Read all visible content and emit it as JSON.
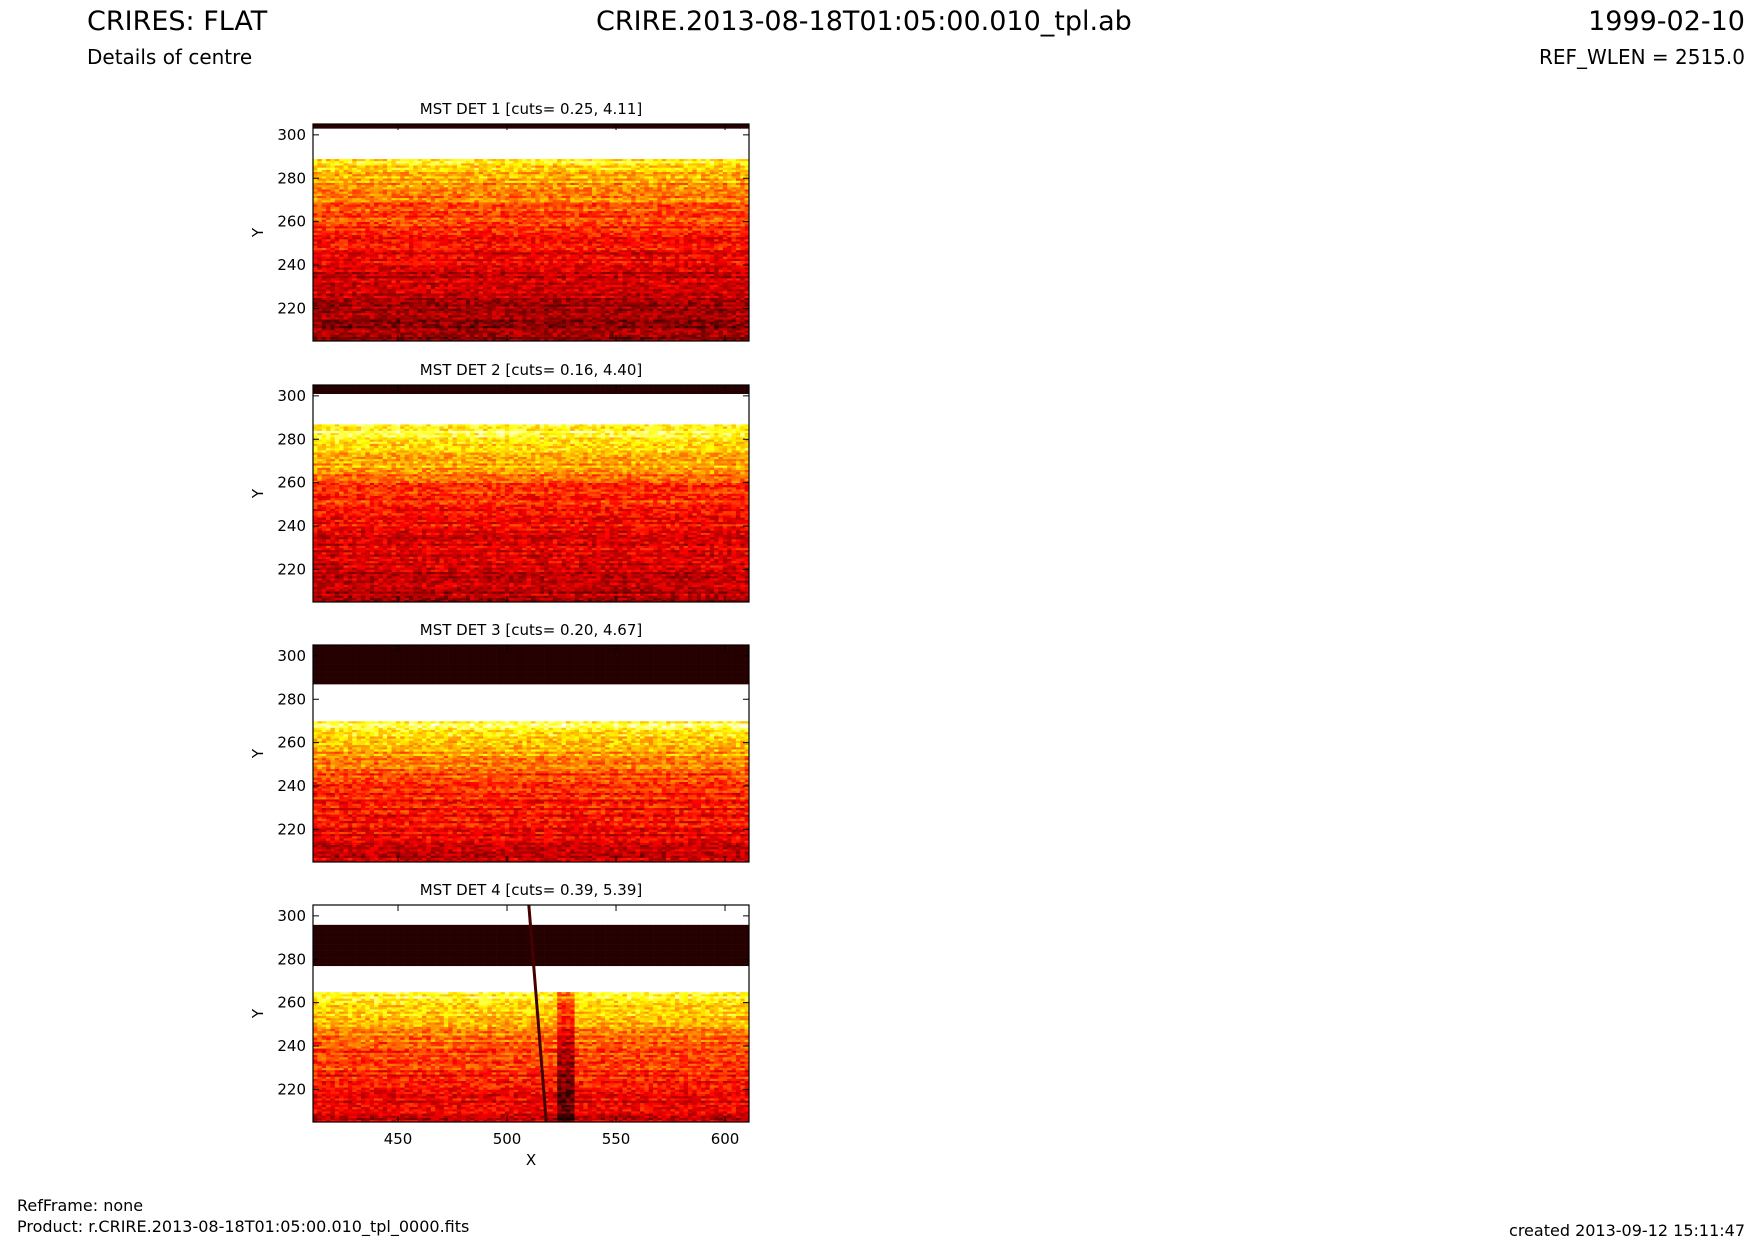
{
  "header": {
    "title_left": "CRIRES: FLAT",
    "subtitle_left": "Details of centre",
    "title_center": "CRIRE.2013-08-18T01:05:00.010_tpl.ab",
    "title_right": "1999-02-10",
    "subtitle_right": "REF_WLEN = 2515.0"
  },
  "footer": {
    "refframe": "RefFrame: none",
    "product": "Product: r.CRIRE.2013-08-18T01:05:00.010_tpl_0000.fits",
    "created": "created 2013-09-12 15:11:47"
  },
  "chart_data": [
    {
      "type": "heatmap",
      "title": "MST DET 1 [cuts= 0.25, 4.11]",
      "ylabel": "Y",
      "xlabel": "",
      "xlim": [
        411,
        611
      ],
      "ylim": [
        205,
        305
      ],
      "yticks": [
        220,
        240,
        260,
        280,
        300
      ],
      "xticks": [],
      "colormap": "hot",
      "dark_band": [
        303,
        305
      ],
      "white_band": [
        289,
        303
      ],
      "gradient": [
        [
          289,
          0.8
        ],
        [
          275,
          0.6
        ],
        [
          255,
          0.45
        ],
        [
          235,
          0.3
        ],
        [
          205,
          0.2
        ]
      ]
    },
    {
      "type": "heatmap",
      "title": "MST DET 2 [cuts= 0.16, 4.40]",
      "ylabel": "Y",
      "xlabel": "",
      "xlim": [
        411,
        611
      ],
      "ylim": [
        205,
        305
      ],
      "yticks": [
        220,
        240,
        260,
        280,
        300
      ],
      "xticks": [],
      "colormap": "hot",
      "dark_band": [
        301,
        305
      ],
      "white_band": [
        287,
        301
      ],
      "gradient": [
        [
          287,
          0.85
        ],
        [
          270,
          0.7
        ],
        [
          258,
          0.5
        ],
        [
          240,
          0.38
        ],
        [
          205,
          0.25
        ]
      ]
    },
    {
      "type": "heatmap",
      "title": "MST DET 3 [cuts= 0.20, 4.67]",
      "ylabel": "Y",
      "xlabel": "",
      "xlim": [
        411,
        611
      ],
      "ylim": [
        205,
        305
      ],
      "yticks": [
        220,
        240,
        260,
        280,
        300
      ],
      "xticks": [],
      "colormap": "hot",
      "dark_band": [
        287,
        305
      ],
      "white_band": [
        270,
        287
      ],
      "gradient": [
        [
          270,
          0.85
        ],
        [
          258,
          0.7
        ],
        [
          245,
          0.5
        ],
        [
          225,
          0.4
        ],
        [
          205,
          0.3
        ]
      ]
    },
    {
      "type": "heatmap",
      "title": "MST DET 4 [cuts= 0.39, 5.39]",
      "ylabel": "Y",
      "xlabel": "X",
      "xlim": [
        411,
        611
      ],
      "ylim": [
        205,
        305
      ],
      "yticks": [
        220,
        240,
        260,
        280,
        300
      ],
      "xticks": [
        450,
        500,
        550,
        600
      ],
      "colormap": "hot",
      "white_top": [
        296,
        305
      ],
      "dark_band": [
        277,
        296
      ],
      "white_band": [
        265,
        277
      ],
      "gradient": [
        [
          265,
          0.85
        ],
        [
          250,
          0.68
        ],
        [
          238,
          0.5
        ],
        [
          220,
          0.4
        ],
        [
          205,
          0.3
        ]
      ],
      "feature_line_x": [
        510,
        518
      ],
      "feature_blob_x": 527
    }
  ]
}
